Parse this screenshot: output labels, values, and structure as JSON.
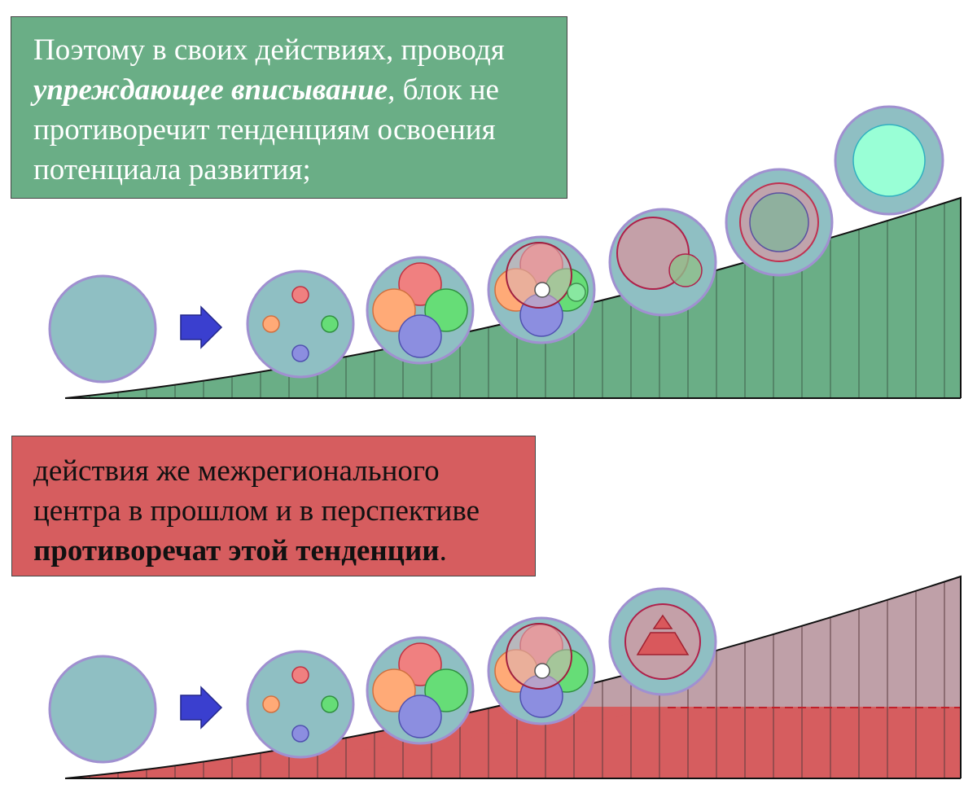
{
  "top_panel": {
    "line1": "Поэтому в своих действиях, проводя",
    "line2_emph": "упреждающее вписывание",
    "line2_rest": ", блок не",
    "line3": "противоречит тенденциям освоения",
    "line4": "потенциала развития;"
  },
  "bottom_panel": {
    "line1": "действия же межрегионального",
    "line2": "центра в прошлом и в перспективе",
    "line3_emph": "противоречат этой тенденции",
    "line3_rest": "."
  },
  "colors": {
    "green_panel": "#6aae86",
    "red_panel": "#d65d5f",
    "circle_fill": "#8fbfc3",
    "arrow": "#3a3fcf",
    "red_area": "#d65d5f",
    "mauve_area": "#bfa0a8"
  }
}
